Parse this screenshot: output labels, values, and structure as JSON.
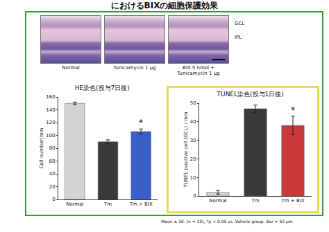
{
  "header": {
    "title": "におけるBIXの細胞保護効果"
  },
  "images": {
    "panels": [
      [
        "Normal"
      ],
      [
        "Tunicamycin 1 μg"
      ],
      [
        "BIX 5 nmol +",
        "Tunicamycin 1 μg"
      ]
    ],
    "layers": [
      "GCL",
      "IPL"
    ]
  },
  "footnote": "Mean ± SE. (n = 10), *p < 0.05 vs. Vehicle group.  Bar = 50 μm",
  "chart_data": [
    {
      "type": "bar",
      "title": "HE染色(投与7日後)",
      "y_label": "Cell number/mm",
      "categories": [
        "Normal",
        "Tm",
        "Tm + BIX"
      ],
      "values": [
        150,
        90,
        106
      ],
      "errors": [
        2,
        3,
        4
      ],
      "colors": [
        "#d4d4d4",
        "#3a3a3a",
        "#3a5fc8"
      ],
      "ylim": [
        0,
        160
      ],
      "yticks": [
        0,
        20,
        40,
        60,
        80,
        100,
        120,
        140,
        160
      ],
      "grid": false,
      "annotations": [
        {
          "category": "Tm + BIX",
          "text": "*"
        }
      ]
    },
    {
      "type": "bar",
      "title": "TUNEL染色(投与1日後)",
      "y_label": "TUNEL positive cell (GCL) / mm",
      "categories": [
        "Normal",
        "Tm",
        "Tm + BIX"
      ],
      "values": [
        2,
        47,
        38
      ],
      "errors": [
        1,
        2,
        5
      ],
      "colors": [
        "#d4d4d4",
        "#3a3a3a",
        "#c83a3a"
      ],
      "ylim": [
        0,
        50
      ],
      "yticks": [
        0,
        10,
        20,
        30,
        40,
        50
      ],
      "grid": false,
      "annotations": [
        {
          "category": "Tm + BIX",
          "text": "*"
        }
      ]
    }
  ]
}
